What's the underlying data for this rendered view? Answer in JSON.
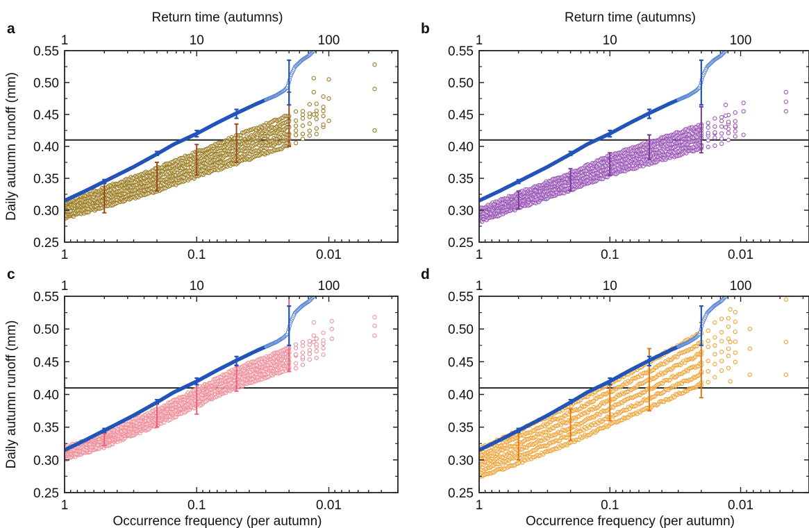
{
  "colors": {
    "observed": "#2255b8",
    "observed_light": "#5a86d2",
    "threshold": "#222222",
    "frame": "#222222"
  },
  "chart_data": [
    {
      "type": "scatter",
      "panel": "a",
      "top_axis_label": "Return time (autumns)",
      "xlabel": "",
      "ylabel": "Daily autumn runoff (mm)",
      "x_scale": "log",
      "x_reversed": true,
      "xlim": [
        1,
        0.003
      ],
      "ylim": [
        0.25,
        0.55
      ],
      "x_ticks": [
        1,
        0.1,
        0.01
      ],
      "x_tick_labels": [
        "1",
        "0.1",
        "0.01"
      ],
      "top_ticks": [
        1,
        10,
        100
      ],
      "top_tick_labels": [
        "1",
        "10",
        "100"
      ],
      "y_ticks": [
        0.25,
        0.3,
        0.35,
        0.4,
        0.45,
        0.5,
        0.55
      ],
      "y_tick_labels": [
        "0.25",
        "0.30",
        "0.35",
        "0.40",
        "0.45",
        "0.50",
        "0.55"
      ],
      "threshold": 0.41,
      "observed_color": "#2255b8",
      "model_color": "#9a7a1e",
      "model_errorbar_color": "#9a4a1a",
      "observed_curve": {
        "x": [
          1,
          0.7,
          0.5,
          0.3,
          0.2,
          0.15,
          0.1,
          0.07,
          0.05,
          0.035,
          0.025,
          0.022,
          0.0205,
          0.0195,
          0.018,
          0.016,
          0.014,
          0.013
        ],
        "y": [
          0.315,
          0.33,
          0.345,
          0.368,
          0.388,
          0.403,
          0.42,
          0.437,
          0.452,
          0.467,
          0.48,
          0.487,
          0.493,
          0.51,
          0.525,
          0.535,
          0.543,
          0.55
        ]
      },
      "observed_errorbars": [
        {
          "x": 0.5,
          "y": 0.345,
          "low": 0.342,
          "high": 0.348
        },
        {
          "x": 0.2,
          "y": 0.389,
          "low": 0.386,
          "high": 0.392
        },
        {
          "x": 0.1,
          "y": 0.42,
          "low": 0.415,
          "high": 0.425
        },
        {
          "x": 0.05,
          "y": 0.452,
          "low": 0.444,
          "high": 0.458
        },
        {
          "x": 0.02,
          "y": 0.5,
          "low": 0.465,
          "high": 0.535
        }
      ],
      "model_curve": {
        "x": [
          1,
          0.5,
          0.2,
          0.1,
          0.05,
          0.02,
          0.01,
          0.005
        ],
        "y": [
          0.3,
          0.32,
          0.348,
          0.372,
          0.395,
          0.425,
          0.455,
          0.49
        ]
      },
      "model_spread": 0.018,
      "model_tail_x": [
        0.013,
        0.01,
        0.0045
      ],
      "model_tail_y": [
        [
          0.45,
          0.485,
          0.507
        ],
        [
          0.44,
          0.475,
          0.505
        ],
        [
          0.425,
          0.49,
          0.528
        ]
      ],
      "model_errorbars": [
        {
          "x": 0.5,
          "y": 0.32,
          "low": 0.296,
          "high": 0.344
        },
        {
          "x": 0.2,
          "y": 0.348,
          "low": 0.33,
          "high": 0.375
        },
        {
          "x": 0.1,
          "y": 0.38,
          "low": 0.355,
          "high": 0.403
        },
        {
          "x": 0.05,
          "y": 0.4,
          "low": 0.375,
          "high": 0.435
        },
        {
          "x": 0.02,
          "y": 0.44,
          "low": 0.4,
          "high": 0.485
        }
      ]
    },
    {
      "type": "scatter",
      "panel": "b",
      "top_axis_label": "Return time (autumns)",
      "xlabel": "",
      "ylabel": "",
      "x_scale": "log",
      "x_reversed": true,
      "xlim": [
        1,
        0.003
      ],
      "ylim": [
        0.25,
        0.55
      ],
      "x_ticks": [
        1,
        0.1,
        0.01
      ],
      "x_tick_labels": [
        "1",
        "0.1",
        "0.01"
      ],
      "top_ticks": [
        1,
        10,
        100
      ],
      "top_tick_labels": [
        "1",
        "10",
        "100"
      ],
      "y_ticks": [
        0.25,
        0.3,
        0.35,
        0.4,
        0.45,
        0.5,
        0.55
      ],
      "y_tick_labels": [
        "0.25",
        "0.30",
        "0.35",
        "0.40",
        "0.45",
        "0.50",
        "0.55"
      ],
      "threshold": 0.41,
      "observed_color": "#2255b8",
      "model_color": "#9a55b8",
      "model_errorbar_color": "#7a3a9a",
      "observed_curve": {
        "x": [
          1,
          0.7,
          0.5,
          0.3,
          0.2,
          0.15,
          0.1,
          0.07,
          0.05,
          0.035,
          0.025,
          0.022,
          0.0205,
          0.0195,
          0.018,
          0.016,
          0.014,
          0.013
        ],
        "y": [
          0.315,
          0.33,
          0.345,
          0.368,
          0.388,
          0.403,
          0.42,
          0.437,
          0.452,
          0.467,
          0.48,
          0.487,
          0.493,
          0.51,
          0.525,
          0.535,
          0.543,
          0.55
        ]
      },
      "observed_errorbars": [
        {
          "x": 0.5,
          "y": 0.345,
          "low": 0.342,
          "high": 0.348
        },
        {
          "x": 0.2,
          "y": 0.389,
          "low": 0.386,
          "high": 0.392
        },
        {
          "x": 0.1,
          "y": 0.42,
          "low": 0.415,
          "high": 0.425
        },
        {
          "x": 0.05,
          "y": 0.452,
          "low": 0.444,
          "high": 0.458
        },
        {
          "x": 0.02,
          "y": 0.5,
          "low": 0.465,
          "high": 0.535
        }
      ],
      "model_curve": {
        "x": [
          1,
          0.5,
          0.2,
          0.1,
          0.05,
          0.02,
          0.01,
          0.005
        ],
        "y": [
          0.292,
          0.315,
          0.345,
          0.37,
          0.39,
          0.415,
          0.435,
          0.46
        ]
      },
      "model_spread": 0.014,
      "model_tail_x": [
        0.013,
        0.0095,
        0.0045
      ],
      "model_tail_y": [
        [
          0.43,
          0.448,
          0.465
        ],
        [
          0.418,
          0.455,
          0.468
        ],
        [
          0.455,
          0.47,
          0.485
        ]
      ],
      "model_errorbars": [
        {
          "x": 0.5,
          "y": 0.315,
          "low": 0.302,
          "high": 0.33
        },
        {
          "x": 0.2,
          "y": 0.347,
          "low": 0.33,
          "high": 0.365
        },
        {
          "x": 0.1,
          "y": 0.37,
          "low": 0.355,
          "high": 0.39
        },
        {
          "x": 0.05,
          "y": 0.398,
          "low": 0.38,
          "high": 0.418
        },
        {
          "x": 0.02,
          "y": 0.425,
          "low": 0.39,
          "high": 0.462
        }
      ]
    },
    {
      "type": "scatter",
      "panel": "c",
      "top_axis_label": "",
      "xlabel": "Occurrence frequency (per autumn)",
      "ylabel": "Daily autumn runoff (mm)",
      "x_scale": "log",
      "x_reversed": true,
      "xlim": [
        1,
        0.003
      ],
      "ylim": [
        0.25,
        0.55
      ],
      "x_ticks": [
        1,
        0.1,
        0.01
      ],
      "x_tick_labels": [
        "1",
        "0.1",
        "0.01"
      ],
      "top_ticks": [
        1,
        10,
        100
      ],
      "top_tick_labels": [
        "1",
        "10",
        "100"
      ],
      "y_ticks": [
        0.25,
        0.3,
        0.35,
        0.4,
        0.45,
        0.5,
        0.55
      ],
      "y_tick_labels": [
        "0.25",
        "0.30",
        "0.35",
        "0.40",
        "0.45",
        "0.50",
        "0.55"
      ],
      "threshold": 0.41,
      "observed_color": "#2255b8",
      "model_color": "#f08f9a",
      "model_errorbar_color": "#e8607a",
      "observed_curve": {
        "x": [
          1,
          0.7,
          0.5,
          0.3,
          0.2,
          0.15,
          0.1,
          0.07,
          0.05,
          0.035,
          0.025,
          0.022,
          0.0205,
          0.0195,
          0.018,
          0.016,
          0.014,
          0.013
        ],
        "y": [
          0.315,
          0.33,
          0.345,
          0.368,
          0.388,
          0.403,
          0.42,
          0.437,
          0.452,
          0.467,
          0.48,
          0.487,
          0.493,
          0.51,
          0.525,
          0.535,
          0.543,
          0.55
        ]
      },
      "observed_errorbars": [
        {
          "x": 0.5,
          "y": 0.345,
          "low": 0.342,
          "high": 0.348
        },
        {
          "x": 0.2,
          "y": 0.389,
          "low": 0.386,
          "high": 0.392
        },
        {
          "x": 0.1,
          "y": 0.42,
          "low": 0.415,
          "high": 0.425
        },
        {
          "x": 0.05,
          "y": 0.452,
          "low": 0.444,
          "high": 0.458
        },
        {
          "x": 0.02,
          "y": 0.51,
          "low": 0.475,
          "high": 0.535
        }
      ],
      "model_curve": {
        "x": [
          1,
          0.5,
          0.2,
          0.1,
          0.05,
          0.02,
          0.01,
          0.005
        ],
        "y": [
          0.31,
          0.33,
          0.365,
          0.395,
          0.425,
          0.455,
          0.48,
          0.5
        ]
      },
      "model_spread": 0.012,
      "model_tail_x": [
        0.013,
        0.0095,
        0.0045
      ],
      "model_tail_y": [
        [
          0.48,
          0.49,
          0.51
        ],
        [
          0.485,
          0.5,
          0.512
        ],
        [
          0.49,
          0.505,
          0.518
        ]
      ],
      "model_errorbars": [
        {
          "x": 0.5,
          "y": 0.33,
          "low": 0.322,
          "high": 0.34
        },
        {
          "x": 0.2,
          "y": 0.365,
          "low": 0.35,
          "high": 0.385
        },
        {
          "x": 0.1,
          "y": 0.39,
          "low": 0.37,
          "high": 0.42
        },
        {
          "x": 0.05,
          "y": 0.425,
          "low": 0.405,
          "high": 0.445
        },
        {
          "x": 0.02,
          "y": 0.48,
          "low": 0.435,
          "high": 0.55
        }
      ]
    },
    {
      "type": "scatter",
      "panel": "d",
      "top_axis_label": "",
      "xlabel": "Occurrence frequency (per autumn)",
      "ylabel": "",
      "x_scale": "log",
      "x_reversed": true,
      "xlim": [
        1,
        0.003
      ],
      "ylim": [
        0.25,
        0.55
      ],
      "x_ticks": [
        1,
        0.1,
        0.01
      ],
      "x_tick_labels": [
        "1",
        "0.1",
        "0.01"
      ],
      "top_ticks": [
        1,
        10,
        100
      ],
      "top_tick_labels": [
        "1",
        "10",
        "100"
      ],
      "y_ticks": [
        0.25,
        0.3,
        0.35,
        0.4,
        0.45,
        0.5,
        0.55
      ],
      "y_tick_labels": [
        "0.25",
        "0.30",
        "0.35",
        "0.40",
        "0.45",
        "0.50",
        "0.55"
      ],
      "threshold": 0.41,
      "observed_color": "#2255b8",
      "model_color": "#f2a030",
      "model_errorbar_color": "#e07a10",
      "observed_curve": {
        "x": [
          1,
          0.7,
          0.5,
          0.3,
          0.2,
          0.15,
          0.1,
          0.07,
          0.05,
          0.035,
          0.025,
          0.022,
          0.0205,
          0.0195,
          0.018,
          0.016,
          0.014,
          0.013
        ],
        "y": [
          0.315,
          0.33,
          0.345,
          0.368,
          0.388,
          0.403,
          0.42,
          0.437,
          0.452,
          0.467,
          0.48,
          0.487,
          0.493,
          0.51,
          0.525,
          0.535,
          0.543,
          0.55
        ]
      },
      "observed_errorbars": [
        {
          "x": 0.5,
          "y": 0.345,
          "low": 0.342,
          "high": 0.348
        },
        {
          "x": 0.2,
          "y": 0.389,
          "low": 0.386,
          "high": 0.392
        },
        {
          "x": 0.1,
          "y": 0.42,
          "low": 0.415,
          "high": 0.425
        },
        {
          "x": 0.05,
          "y": 0.452,
          "low": 0.444,
          "high": 0.458
        },
        {
          "x": 0.02,
          "y": 0.51,
          "low": 0.475,
          "high": 0.535
        }
      ],
      "model_curve": {
        "x": [
          1,
          0.5,
          0.2,
          0.1,
          0.05,
          0.02,
          0.01,
          0.005
        ],
        "y": [
          0.295,
          0.32,
          0.355,
          0.385,
          0.415,
          0.455,
          0.49,
          0.52
        ]
      },
      "model_spread": 0.03,
      "model_tail_x": [
        0.012,
        0.0085,
        0.0045
      ],
      "model_tail_y": [
        [
          0.42,
          0.48,
          0.53
        ],
        [
          0.43,
          0.47,
          0.5
        ],
        [
          0.43,
          0.48,
          0.545
        ]
      ],
      "model_errorbars": [
        {
          "x": 0.5,
          "y": 0.32,
          "low": 0.3,
          "high": 0.345
        },
        {
          "x": 0.2,
          "y": 0.35,
          "low": 0.33,
          "high": 0.378
        },
        {
          "x": 0.1,
          "y": 0.39,
          "low": 0.36,
          "high": 0.42
        },
        {
          "x": 0.05,
          "y": 0.42,
          "low": 0.375,
          "high": 0.47
        },
        {
          "x": 0.02,
          "y": 0.44,
          "low": 0.395,
          "high": 0.51
        }
      ]
    }
  ]
}
